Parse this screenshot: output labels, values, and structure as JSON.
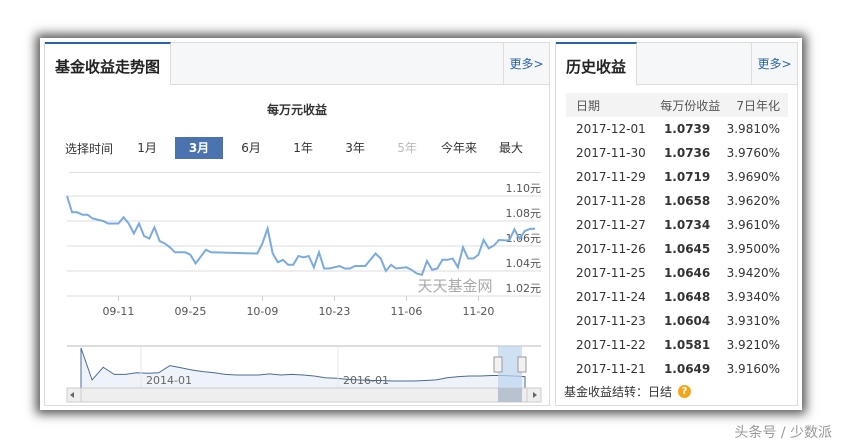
{
  "left_panel": {
    "tab": "基金收益走势图",
    "more": "更多>",
    "chart_title": "每万元收益",
    "range_label": "选择时间",
    "ranges": [
      {
        "label": "1月",
        "state": "normal"
      },
      {
        "label": "3月",
        "state": "active"
      },
      {
        "label": "6月",
        "state": "normal"
      },
      {
        "label": "1年",
        "state": "normal"
      },
      {
        "label": "3年",
        "state": "normal"
      },
      {
        "label": "5年",
        "state": "disabled"
      },
      {
        "label": "今年来",
        "state": "normal"
      },
      {
        "label": "最大",
        "state": "normal"
      }
    ],
    "watermark": "天天基金网"
  },
  "chart_data": {
    "type": "line",
    "title": "每万元收益",
    "line_color": "#7aabdf",
    "ylim": [
      1.02,
      1.1
    ],
    "yticks": [
      "1.10元",
      "1.08元",
      "1.06元",
      "1.04元",
      "1.02元"
    ],
    "ytick_values": [
      1.1,
      1.08,
      1.06,
      1.04,
      1.02
    ],
    "xticks": [
      "09-11",
      "09-25",
      "10-09",
      "10-23",
      "11-06",
      "11-20"
    ],
    "xlim": [
      "2017-09-01",
      "2017-12-01"
    ],
    "x": [
      "2017-09-01",
      "2017-09-02",
      "2017-09-03",
      "2017-09-04",
      "2017-09-05",
      "2017-09-06",
      "2017-09-08",
      "2017-09-09",
      "2017-09-11",
      "2017-09-12",
      "2017-09-13",
      "2017-09-14",
      "2017-09-15",
      "2017-09-16",
      "2017-09-17",
      "2017-09-18",
      "2017-09-19",
      "2017-09-20",
      "2017-09-21",
      "2017-09-22",
      "2017-09-24",
      "2017-09-25",
      "2017-09-26",
      "2017-09-28",
      "2017-09-29",
      "2017-10-08",
      "2017-10-09",
      "2017-10-10",
      "2017-10-11",
      "2017-10-12",
      "2017-10-13",
      "2017-10-14",
      "2017-10-15",
      "2017-10-16",
      "2017-10-17",
      "2017-10-18",
      "2017-10-19",
      "2017-10-20",
      "2017-10-21",
      "2017-10-22",
      "2017-10-24",
      "2017-10-25",
      "2017-10-26",
      "2017-10-27",
      "2017-10-29",
      "2017-10-30",
      "2017-10-31",
      "2017-11-01",
      "2017-11-02",
      "2017-11-03",
      "2017-11-04",
      "2017-11-06",
      "2017-11-07",
      "2017-11-08",
      "2017-11-09",
      "2017-11-10",
      "2017-11-11",
      "2017-11-12",
      "2017-11-13",
      "2017-11-14",
      "2017-11-15",
      "2017-11-16",
      "2017-11-17",
      "2017-11-18",
      "2017-11-19",
      "2017-11-20",
      "2017-11-21",
      "2017-11-22",
      "2017-11-23",
      "2017-11-24",
      "2017-11-25",
      "2017-11-26",
      "2017-11-27",
      "2017-11-28",
      "2017-11-29",
      "2017-11-30",
      "2017-12-01"
    ],
    "y": [
      1.1,
      1.087,
      1.087,
      1.085,
      1.085,
      1.082,
      1.08,
      1.078,
      1.078,
      1.083,
      1.078,
      1.07,
      1.078,
      1.068,
      1.066,
      1.075,
      1.064,
      1.062,
      1.059,
      1.055,
      1.055,
      1.053,
      1.046,
      1.057,
      1.055,
      1.054,
      1.062,
      1.074,
      1.054,
      1.047,
      1.049,
      1.045,
      1.045,
      1.052,
      1.051,
      1.052,
      1.043,
      1.055,
      1.042,
      1.042,
      1.044,
      1.042,
      1.042,
      1.044,
      1.044,
      1.049,
      1.054,
      1.05,
      1.04,
      1.045,
      1.042,
      1.043,
      1.041,
      1.038,
      1.037,
      1.048,
      1.041,
      1.042,
      1.049,
      1.049,
      1.05,
      1.043,
      1.059,
      1.05,
      1.05,
      1.053,
      1.0649,
      1.0581,
      1.0604,
      1.0648,
      1.0646,
      1.0645,
      1.0734,
      1.0658,
      1.0719,
      1.0736,
      1.0739
    ],
    "navigator": {
      "labels": [
        "2014-01",
        "2016-01"
      ],
      "values": [
        9.0,
        3.2,
        5.5,
        4.2,
        4.2,
        4.5,
        4.4,
        4.5,
        5.8,
        5.4,
        5.0,
        4.7,
        4.5,
        4.2,
        4.1,
        4.1,
        4.1,
        4.3,
        4.1,
        4.2,
        4.1,
        3.9,
        3.6,
        3.5,
        3.3,
        3.2,
        3.1,
        3.1,
        3.0,
        3.0,
        3.0,
        3.1,
        3.2,
        3.6,
        3.8,
        3.9,
        3.9,
        4.0,
        4.0,
        3.9,
        3.8
      ]
    }
  },
  "right_panel": {
    "tab": "历史收益",
    "more": "更多>",
    "columns": [
      "日期",
      "每万份收益",
      "7日年化"
    ],
    "rows": [
      [
        "2017-12-01",
        "1.0739",
        "3.9810%"
      ],
      [
        "2017-11-30",
        "1.0736",
        "3.9760%"
      ],
      [
        "2017-11-29",
        "1.0719",
        "3.9690%"
      ],
      [
        "2017-11-28",
        "1.0658",
        "3.9620%"
      ],
      [
        "2017-11-27",
        "1.0734",
        "3.9610%"
      ],
      [
        "2017-11-26",
        "1.0645",
        "3.9500%"
      ],
      [
        "2017-11-25",
        "1.0646",
        "3.9420%"
      ],
      [
        "2017-11-24",
        "1.0648",
        "3.9340%"
      ],
      [
        "2017-11-23",
        "1.0604",
        "3.9310%"
      ],
      [
        "2017-11-22",
        "1.0581",
        "3.9210%"
      ],
      [
        "2017-11-21",
        "1.0649",
        "3.9160%"
      ]
    ],
    "footer_label": "基金收益结转：",
    "footer_value": "日结"
  },
  "watermark": "头条号 / 少数派"
}
